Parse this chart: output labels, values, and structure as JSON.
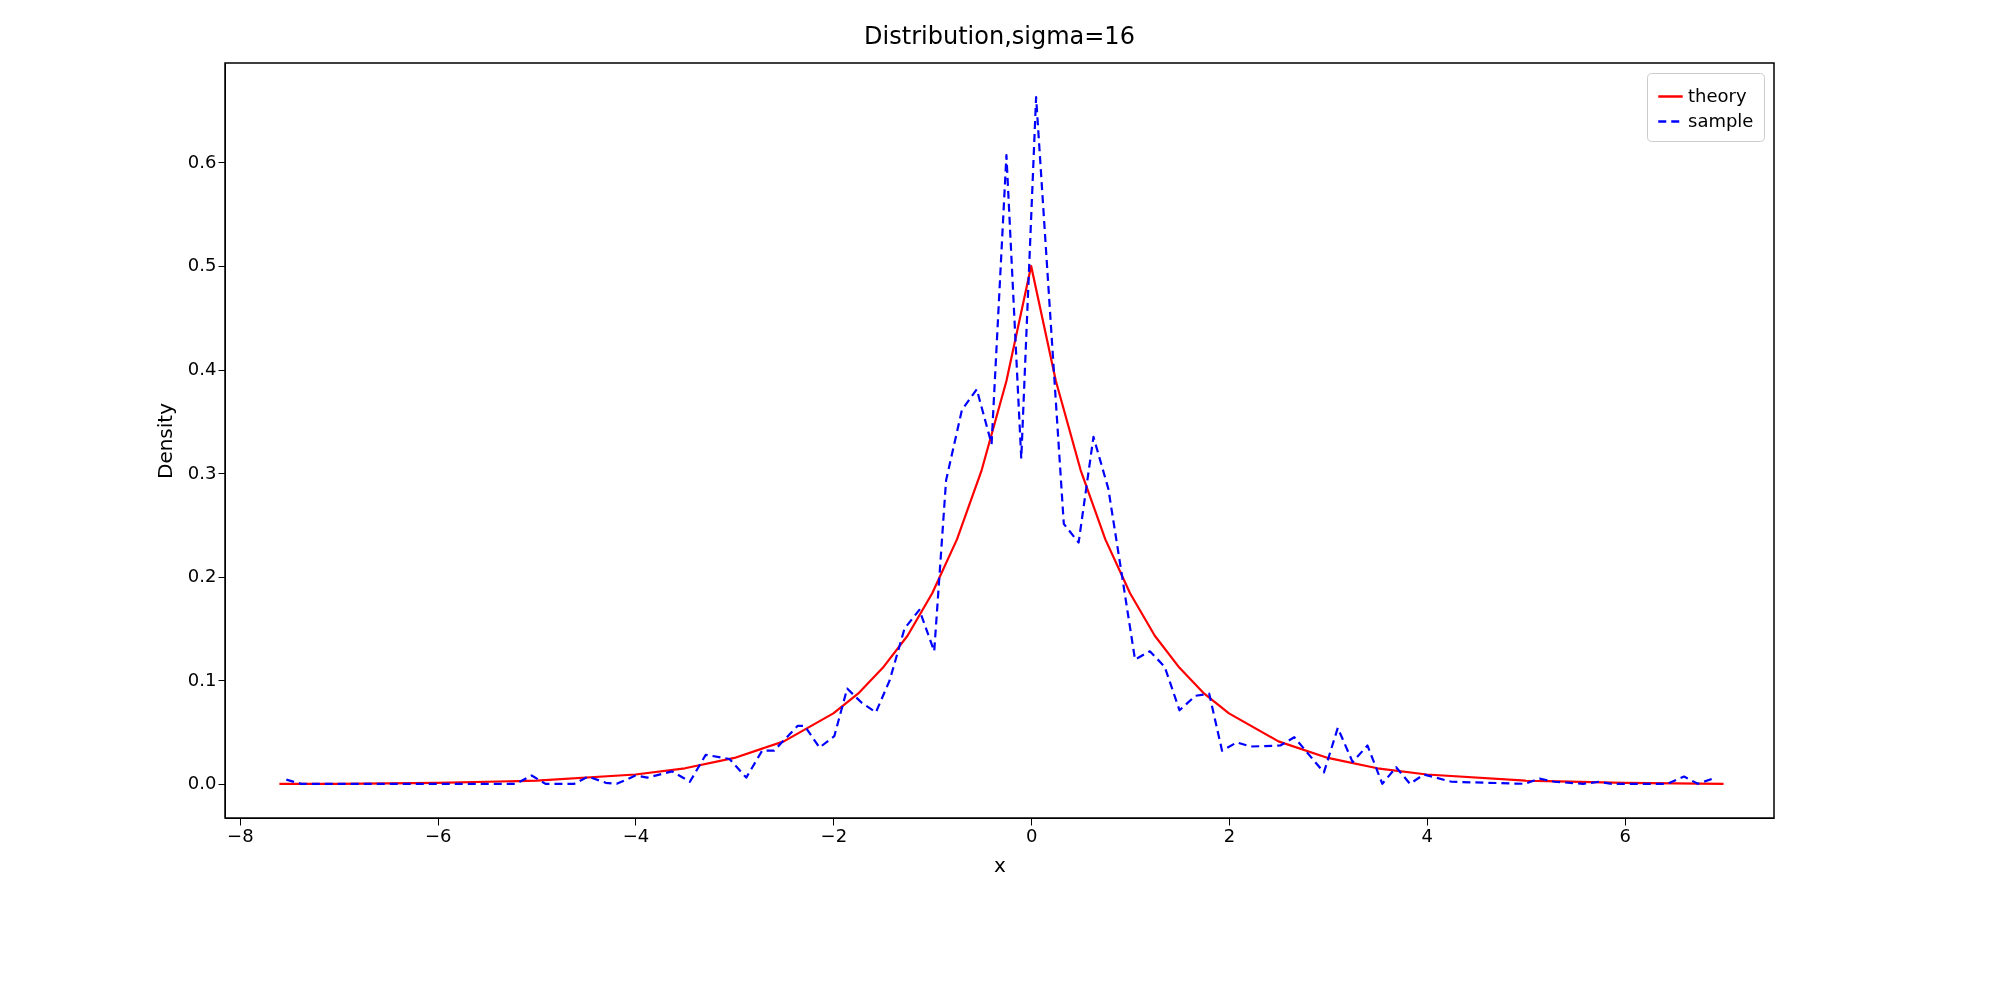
{
  "chart_data": {
    "type": "line",
    "title": "Distribution,sigma=16",
    "xlabel": "x",
    "ylabel": "Density",
    "xlim": [
      -8.15,
      7.51
    ],
    "ylim": [
      -0.033,
      0.696
    ],
    "xticks": [
      {
        "value": -8,
        "label": "−8"
      },
      {
        "value": -6,
        "label": "−6"
      },
      {
        "value": -4,
        "label": "−4"
      },
      {
        "value": -2,
        "label": "−2"
      },
      0,
      2,
      4,
      6
    ],
    "yticks": [
      {
        "value": 0,
        "label": "0.0"
      },
      0.1,
      0.2,
      0.3,
      0.4,
      0.5,
      0.6
    ],
    "grid": false,
    "legend": "top right",
    "marker": "none",
    "series": [
      {
        "name": "theory",
        "color": "#ff0000",
        "line_style": "solid",
        "x": [
          -7.6,
          -7,
          -6,
          -5,
          -4,
          -3.5,
          -3,
          -2.5,
          -2,
          -1.75,
          -1.5,
          -1.25,
          -1,
          -0.75,
          -0.5,
          -0.25,
          0,
          0.25,
          0.5,
          0.75,
          1,
          1.25,
          1.5,
          1.75,
          2,
          2.5,
          3,
          3.5,
          4,
          5,
          6,
          7
        ],
        "values": [
          0.0,
          0.0,
          0.001,
          0.003,
          0.009,
          0.015,
          0.025,
          0.041,
          0.068,
          0.087,
          0.112,
          0.143,
          0.184,
          0.236,
          0.303,
          0.389,
          0.5,
          0.389,
          0.303,
          0.236,
          0.184,
          0.143,
          0.112,
          0.087,
          0.068,
          0.041,
          0.025,
          0.015,
          0.009,
          0.003,
          0.001,
          0.0
        ]
      },
      {
        "name": "sample",
        "color": "#0000ff",
        "line_style": "dashed",
        "x": [
          -7.53,
          -7.38,
          -5.21,
          -5.05,
          -4.91,
          -4.62,
          -4.48,
          -4.3,
          -4.19,
          -4.0,
          -3.88,
          -3.63,
          -3.45,
          -3.29,
          -3.05,
          -2.88,
          -2.72,
          -2.6,
          -2.36,
          -2.29,
          -2.14,
          -1.99,
          -1.86,
          -1.71,
          -1.57,
          -1.43,
          -1.28,
          -1.13,
          -0.98,
          -0.86,
          -0.7,
          -0.55,
          -0.4,
          -0.25,
          -0.1,
          0.05,
          0.33,
          0.48,
          0.63,
          0.78,
          0.92,
          1.05,
          1.2,
          1.35,
          1.5,
          1.66,
          1.8,
          1.93,
          2.08,
          2.22,
          2.52,
          2.66,
          2.96,
          3.1,
          3.25,
          3.4,
          3.55,
          3.69,
          3.83,
          3.97,
          4.25,
          4.99,
          5.14,
          5.29,
          5.58,
          5.74,
          5.87,
          6.43,
          6.6,
          6.74,
          6.89
        ],
        "values": [
          0.004,
          0.0,
          0.0,
          0.008,
          0.0,
          0.0,
          0.007,
          0.001,
          0.0,
          0.008,
          0.006,
          0.012,
          0.002,
          0.028,
          0.024,
          0.006,
          0.032,
          0.032,
          0.056,
          0.056,
          0.035,
          0.046,
          0.092,
          0.078,
          0.069,
          0.1,
          0.15,
          0.168,
          0.128,
          0.293,
          0.361,
          0.381,
          0.328,
          0.607,
          0.314,
          0.663,
          0.251,
          0.233,
          0.335,
          0.285,
          0.2,
          0.12,
          0.128,
          0.113,
          0.071,
          0.085,
          0.087,
          0.032,
          0.04,
          0.036,
          0.037,
          0.045,
          0.011,
          0.054,
          0.021,
          0.037,
          0.0,
          0.016,
          0.0,
          0.009,
          0.002,
          0.0,
          0.005,
          0.002,
          0.0,
          0.002,
          0.0,
          0.0,
          0.007,
          0.0,
          0.005
        ]
      }
    ]
  }
}
